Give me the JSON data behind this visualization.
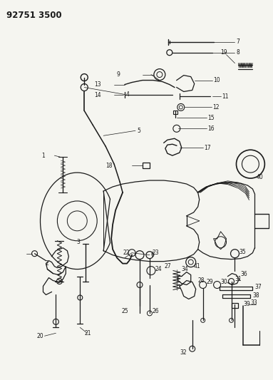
{
  "title": "92751 3500",
  "bg": "#f5f5f0",
  "lc": "#1a1a1a",
  "figsize": [
    3.83,
    5.33
  ],
  "dpi": 100
}
